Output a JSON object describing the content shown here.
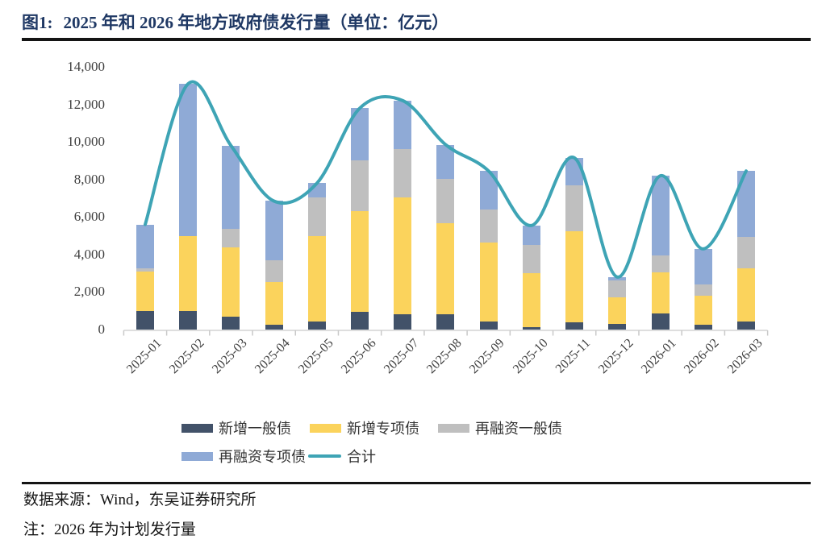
{
  "figure": {
    "label": "图1:",
    "title": "2025 年和 2026 年地方政府债发行量（单位：亿元）"
  },
  "footer": {
    "source": "数据来源：Wind，东吴证券研究所",
    "note": "注：2026 年为计划发行量"
  },
  "chart_data": {
    "type": "bar",
    "subtype": "stacked-bars-with-total-line",
    "title": "2025 年和 2026 年地方政府债发行量（单位：亿元）",
    "unit": "亿元",
    "xlabel": "",
    "ylabel": "",
    "ylim": [
      0,
      14000
    ],
    "grid": false,
    "legend_position": "bottom",
    "ytick_values": [
      0,
      2000,
      4000,
      6000,
      8000,
      10000,
      12000,
      14000
    ],
    "ytick_labels": [
      "0",
      "2,000",
      "4,000",
      "6,000",
      "8,000",
      "10,000",
      "12,000",
      "14,000"
    ],
    "categories": [
      "2025-01",
      "2025-02",
      "2025-03",
      "2025-04",
      "2025-05",
      "2025-06",
      "2025-07",
      "2025-08",
      "2025-09",
      "2025-10",
      "2025-11",
      "2025-12",
      "2026-01",
      "2026-02",
      "2026-03"
    ],
    "stacked_series": [
      {
        "name": "新增一般债",
        "color": "#425269",
        "values": [
          1000,
          1000,
          700,
          250,
          450,
          950,
          800,
          800,
          450,
          150,
          400,
          300,
          850,
          250,
          450
        ]
      },
      {
        "name": "新增专项债",
        "color": "#FBD35C",
        "values": [
          2100,
          4000,
          3700,
          2300,
          4550,
          5350,
          6250,
          4850,
          4200,
          2850,
          4850,
          1400,
          2200,
          1550,
          2800
        ]
      },
      {
        "name": "再融资一般债",
        "color": "#BFBFBF",
        "values": [
          150,
          0,
          950,
          1150,
          2050,
          2700,
          2550,
          2400,
          1750,
          1500,
          2450,
          900,
          900,
          600,
          1700
        ]
      },
      {
        "name": "再融资专项债",
        "color": "#8FAAD6",
        "values": [
          2350,
          8100,
          4450,
          3150,
          750,
          2800,
          2600,
          1800,
          2050,
          1050,
          1450,
          200,
          4250,
          1900,
          3500
        ]
      }
    ],
    "line_series": {
      "name": "合计",
      "color": "#3EA4B5",
      "values": [
        5600,
        13100,
        9800,
        6850,
        7800,
        11800,
        12200,
        9850,
        8450,
        5550,
        9150,
        2800,
        8200,
        4300,
        8450
      ]
    }
  }
}
